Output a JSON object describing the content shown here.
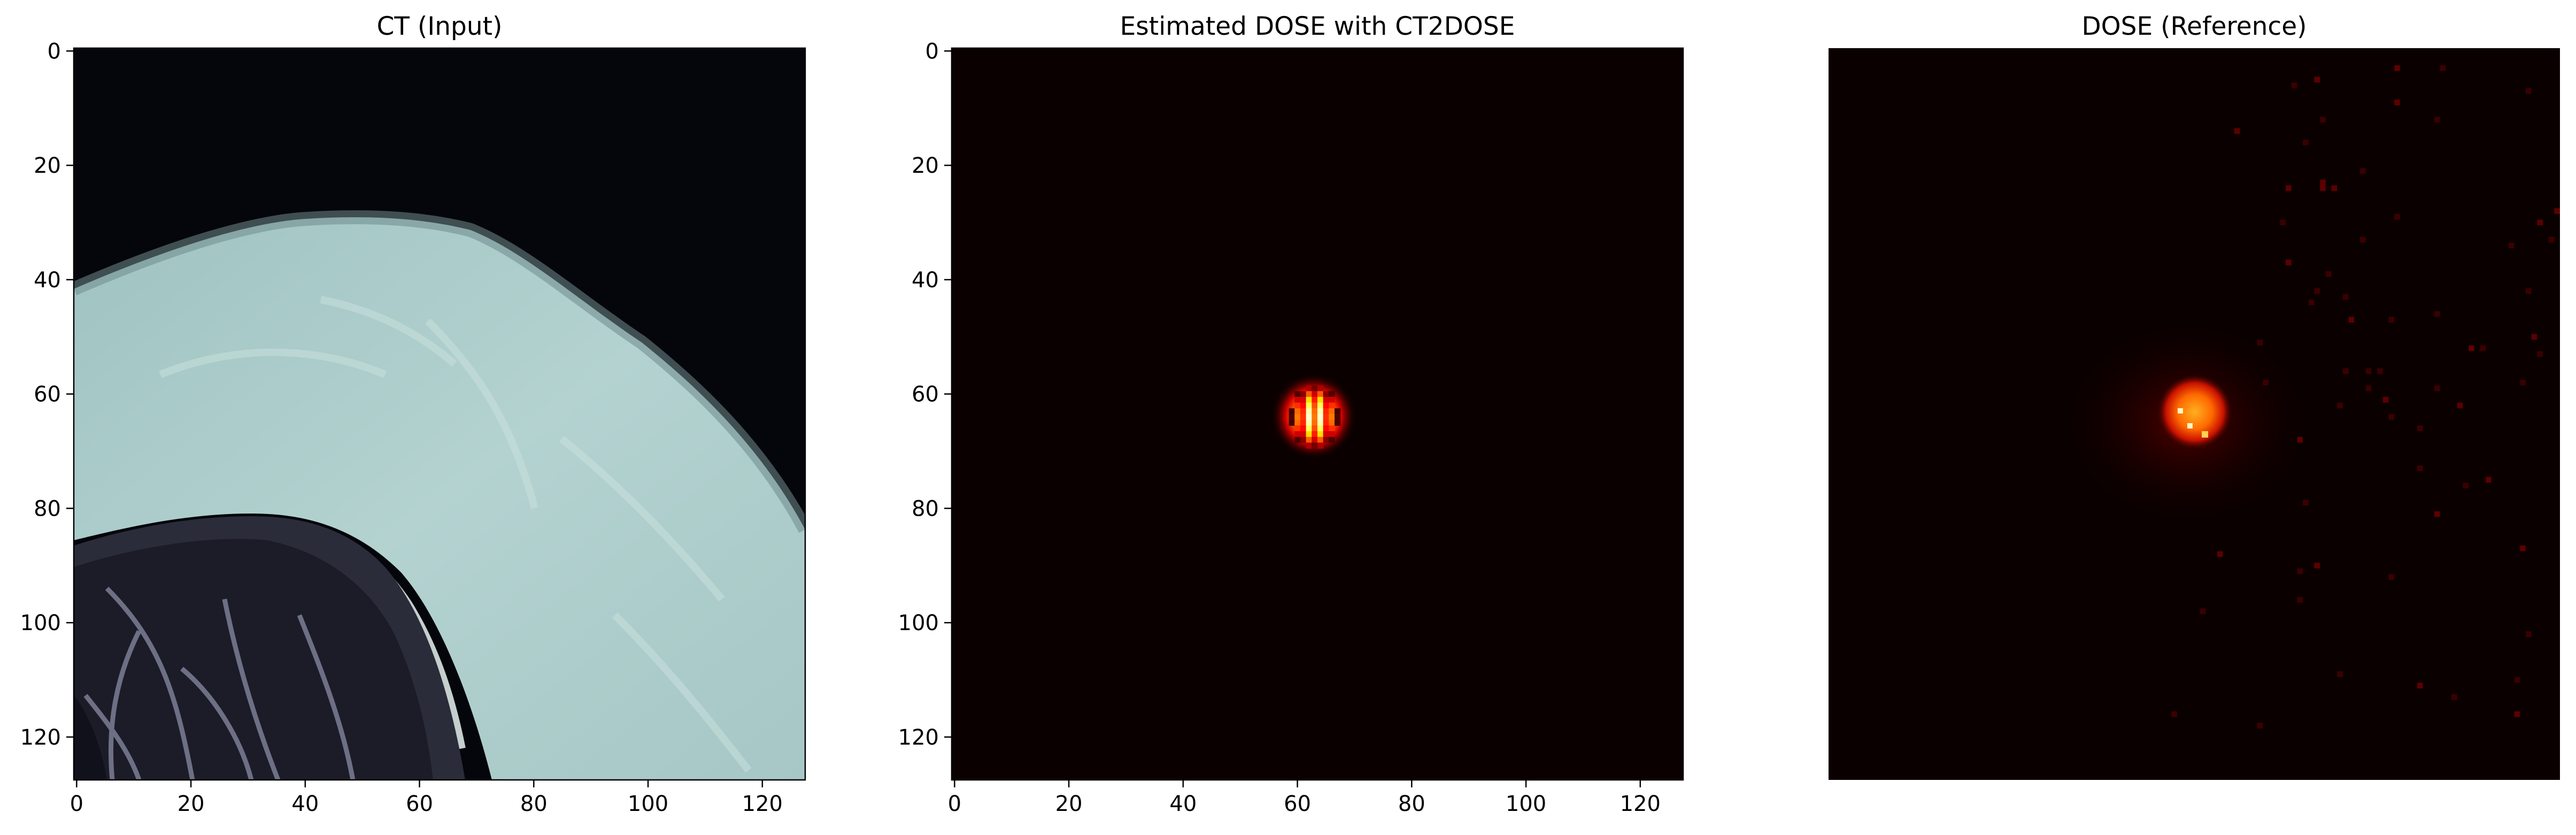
{
  "chart_data": [
    {
      "type": "heatmap",
      "title": "CT (Input)",
      "colormap": "bone",
      "xlim": [
        0,
        127
      ],
      "ylim": [
        127,
        0
      ],
      "x_ticks": [
        "0",
        "20",
        "40",
        "60",
        "80",
        "100",
        "120"
      ],
      "y_ticks": [
        "0",
        "20",
        "40",
        "60",
        "80",
        "100",
        "120"
      ],
      "axes_visible": true,
      "content": "CT slice: dark background top-right, bright soft-tissue/bone band diagonally across, dark lung region with vessels bottom-left"
    },
    {
      "type": "heatmap",
      "title": "Estimated DOSE with CT2DOSE",
      "colormap": "hot",
      "xlim": [
        0,
        127
      ],
      "ylim": [
        127,
        0
      ],
      "x_ticks": [
        "0",
        "20",
        "40",
        "60",
        "80",
        "100",
        "120"
      ],
      "y_ticks": [
        "0",
        "20",
        "40",
        "60",
        "80",
        "100",
        "120"
      ],
      "axes_visible": true,
      "hotspot": {
        "x": 63,
        "y": 64,
        "radius": 6
      }
    },
    {
      "type": "heatmap",
      "title": "DOSE (Reference)",
      "colormap": "hot",
      "xlim": [
        0,
        127
      ],
      "ylim": [
        127,
        0
      ],
      "x_ticks": [],
      "y_ticks": [],
      "axes_visible": false,
      "hotspot": {
        "x": 63,
        "y": 63,
        "radius": 5
      }
    }
  ],
  "colors": {
    "bone_dark": "#04050a",
    "bone_tissue": "#a8c9c7",
    "hot_background": "#0b0000",
    "hot_peak": "#ffff40"
  }
}
